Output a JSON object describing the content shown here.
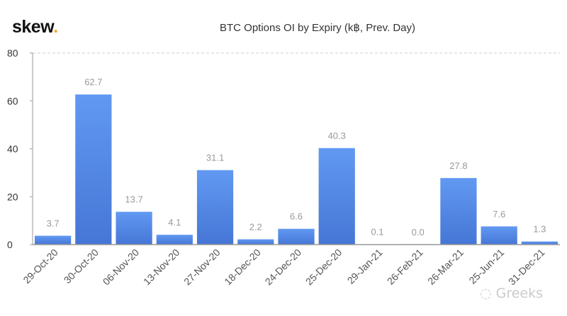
{
  "logo": {
    "text": "skew",
    "dot": "."
  },
  "watermark": "Greeks",
  "colors": {
    "bar_top": "#6199f2",
    "bar_bottom": "#4676d6",
    "label": "#999999",
    "axis": "#999999",
    "grid": "#cccccc",
    "logo_dot": "#f5a623"
  },
  "chart_data": {
    "type": "bar",
    "title": "BTC Options OI by Expiry (k฿, Prev. Day)",
    "categories": [
      "29-Oct-20",
      "30-Oct-20",
      "06-Nov-20",
      "13-Nov-20",
      "27-Nov-20",
      "18-Dec-20",
      "24-Dec-20",
      "25-Dec-20",
      "29-Jan-21",
      "26-Feb-21",
      "26-Mar-21",
      "25-Jun-21",
      "31-Dec-21"
    ],
    "values": [
      3.7,
      62.7,
      13.7,
      4.1,
      31.1,
      2.2,
      6.6,
      40.3,
      0.1,
      0.0,
      27.8,
      7.6,
      1.3
    ],
    "data_labels": [
      "3.7",
      "62.7",
      "13.7",
      "4.1",
      "31.1",
      "2.2",
      "6.6",
      "40.3",
      "0.1",
      "0.0",
      "27.8",
      "7.6",
      "1.3"
    ],
    "ylim": [
      0,
      80
    ],
    "yticks": [
      "0",
      "20",
      "40",
      "60",
      "80"
    ],
    "grid": "dashed top line only",
    "xlabel": "",
    "ylabel": ""
  }
}
